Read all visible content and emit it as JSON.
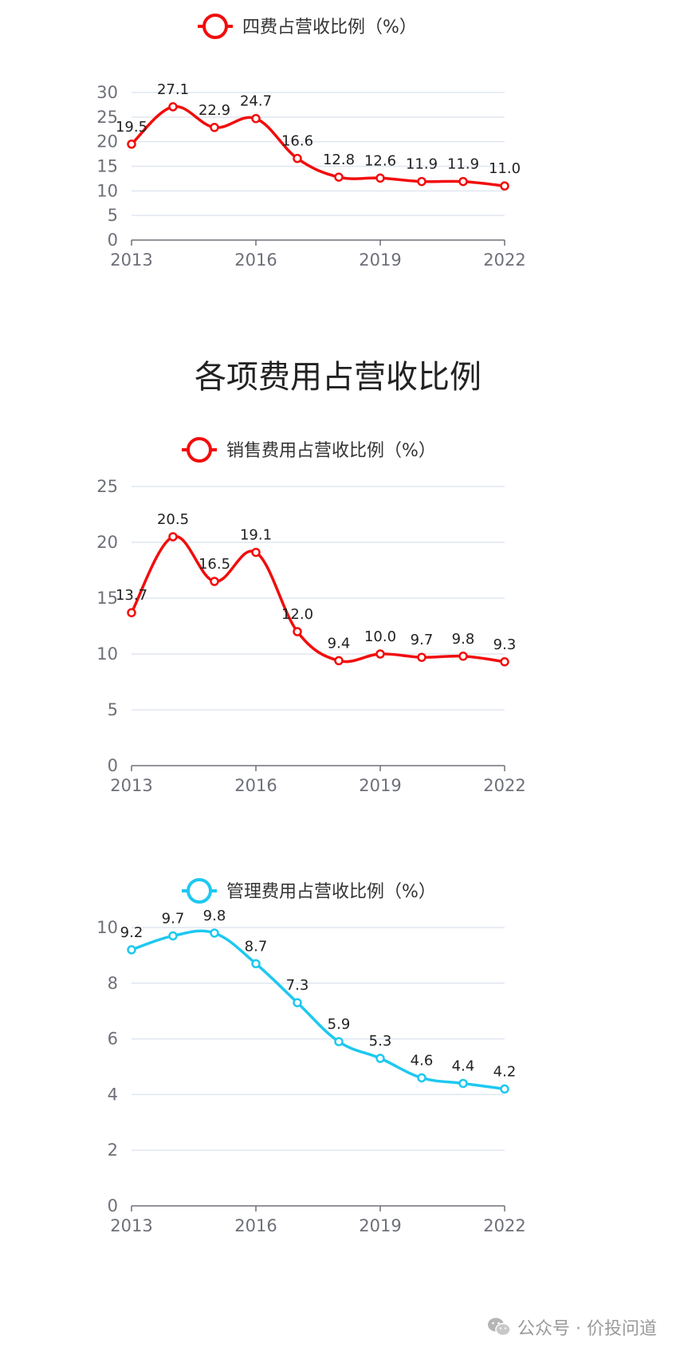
{
  "chart_data": [
    {
      "type": "line",
      "legend": "四费占营收比例（%）",
      "categories": [
        "2013",
        "2014",
        "2015",
        "2016",
        "2017",
        "2018",
        "2019",
        "2020",
        "2021",
        "2022"
      ],
      "x_tick_labels": [
        "2013",
        "2016",
        "2019",
        "2022"
      ],
      "series": [
        {
          "name": "四费占营收比例（%）",
          "values": [
            19.5,
            27.1,
            22.9,
            24.7,
            16.6,
            12.8,
            12.6,
            11.9,
            11.9,
            11.0
          ],
          "color": "#f20c0c"
        }
      ],
      "ylim": [
        0,
        30
      ],
      "y_ticks": [
        0,
        5,
        10,
        15,
        20,
        25,
        30
      ],
      "grid": true,
      "legend_position": "top-center"
    },
    {
      "type": "line",
      "legend": "销售费用占营收比例（%）",
      "categories": [
        "2013",
        "2014",
        "2015",
        "2016",
        "2017",
        "2018",
        "2019",
        "2020",
        "2021",
        "2022"
      ],
      "x_tick_labels": [
        "2013",
        "2016",
        "2019",
        "2022"
      ],
      "series": [
        {
          "name": "销售费用占营收比例（%）",
          "values": [
            13.7,
            20.5,
            16.5,
            19.1,
            12.0,
            9.4,
            10.0,
            9.7,
            9.8,
            9.3
          ],
          "color": "#f20c0c"
        }
      ],
      "ylim": [
        0,
        25
      ],
      "y_ticks": [
        0,
        5,
        10,
        15,
        20,
        25
      ],
      "grid": true,
      "legend_position": "top-center"
    },
    {
      "type": "line",
      "legend": "管理费用占营收比例（%）",
      "categories": [
        "2013",
        "2014",
        "2015",
        "2016",
        "2017",
        "2018",
        "2019",
        "2020",
        "2021",
        "2022"
      ],
      "x_tick_labels": [
        "2013",
        "2016",
        "2019",
        "2022"
      ],
      "series": [
        {
          "name": "管理费用占营收比例（%）",
          "values": [
            9.2,
            9.7,
            9.8,
            8.7,
            7.3,
            5.9,
            5.3,
            4.6,
            4.4,
            4.2
          ],
          "color": "#1ec8f0"
        }
      ],
      "ylim": [
        0,
        10
      ],
      "y_ticks": [
        0,
        2,
        4,
        6,
        8,
        10
      ],
      "grid": true,
      "legend_position": "top-center"
    }
  ],
  "section_title": "各项费用占营收比例",
  "watermark": {
    "text": "公众号 · 价投问道",
    "icon": "wechat-icon"
  }
}
